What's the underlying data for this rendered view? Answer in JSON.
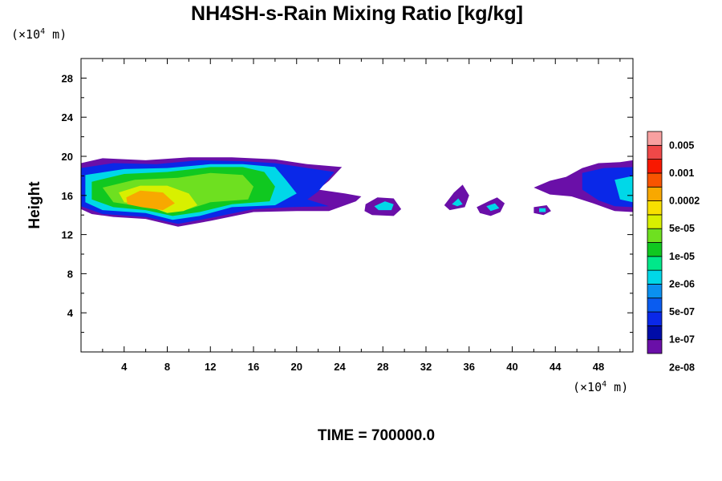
{
  "chart_data": {
    "type": "heatmap",
    "title": "NH4SH-s-Rain Mixing Ratio [kg/kg]",
    "ylabel": "Height",
    "x_unit": {
      "prefix": "(×10",
      "exp": "4",
      "suffix": " m)"
    },
    "y_unit": {
      "prefix": "(×10",
      "exp": "4",
      "suffix": " m)"
    },
    "xlim": [
      0,
      51.2
    ],
    "ylim": [
      0,
      30
    ],
    "x_ticks": [
      4,
      8,
      12,
      16,
      20,
      24,
      28,
      32,
      36,
      40,
      44,
      48
    ],
    "y_ticks": [
      4,
      8,
      12,
      16,
      20,
      24,
      28
    ],
    "footer": "TIME = 700000.0",
    "colorbar": {
      "labels": [
        "0.005",
        "0.001",
        "0.0002",
        "5e-05",
        "1e-05",
        "2e-06",
        "5e-07",
        "1e-07",
        "2e-08"
      ],
      "colors": [
        "#6a0fa8",
        "#000ca8",
        "#0a28e8",
        "#0a5cf0",
        "#0a90f0",
        "#00d8e8",
        "#00e88a",
        "#10c820",
        "#6ee020",
        "#d8f000",
        "#f8e000",
        "#f8a800",
        "#f85400",
        "#f81800",
        "#f04848",
        "#f8a0a0"
      ]
    },
    "regions": [
      {
        "name": "main-cloud",
        "level": 0,
        "pts": [
          [
            0,
            19.3
          ],
          [
            2,
            19.8
          ],
          [
            6,
            19.6
          ],
          [
            10,
            19.9
          ],
          [
            14,
            19.9
          ],
          [
            18,
            19.7
          ],
          [
            21,
            19.2
          ],
          [
            24.2,
            18.9
          ],
          [
            23,
            17.5
          ],
          [
            22,
            16.6
          ],
          [
            24.5,
            16.2
          ],
          [
            26,
            15.9
          ],
          [
            25.5,
            15.4
          ],
          [
            23,
            14.4
          ],
          [
            20,
            14.4
          ],
          [
            16,
            14.3
          ],
          [
            12,
            13.4
          ],
          [
            9,
            12.8
          ],
          [
            6,
            13.6
          ],
          [
            3,
            13.8
          ],
          [
            1,
            14.1
          ],
          [
            0,
            14.6
          ]
        ]
      },
      {
        "name": "main-cloud",
        "level": 2,
        "pts": [
          [
            0,
            18.8
          ],
          [
            3,
            19.3
          ],
          [
            7,
            19.2
          ],
          [
            11,
            19.6
          ],
          [
            15,
            19.5
          ],
          [
            18,
            19.3
          ],
          [
            21,
            18.8
          ],
          [
            23.5,
            18.4
          ],
          [
            22,
            16.4
          ],
          [
            21,
            15.6
          ],
          [
            23,
            14.9
          ],
          [
            19.5,
            14.8
          ],
          [
            16,
            14.6
          ],
          [
            12,
            13.7
          ],
          [
            9,
            13.1
          ],
          [
            6,
            13.8
          ],
          [
            2,
            14.1
          ],
          [
            0,
            14.9
          ]
        ]
      },
      {
        "name": "main-cloud",
        "level": 5,
        "pts": [
          [
            0.4,
            18.1
          ],
          [
            4,
            18.7
          ],
          [
            8,
            18.8
          ],
          [
            12,
            19.2
          ],
          [
            15,
            19.2
          ],
          [
            18,
            18.9
          ],
          [
            19,
            17.6
          ],
          [
            20,
            16.2
          ],
          [
            18,
            15.0
          ],
          [
            14,
            14.8
          ],
          [
            11,
            13.9
          ],
          [
            8.5,
            13.5
          ],
          [
            6,
            14.2
          ],
          [
            2,
            14.5
          ],
          [
            0.4,
            15.3
          ]
        ]
      },
      {
        "name": "main-cloud",
        "level": 7,
        "pts": [
          [
            1,
            17.4
          ],
          [
            4,
            18.2
          ],
          [
            8,
            18.4
          ],
          [
            12,
            18.9
          ],
          [
            15,
            18.9
          ],
          [
            17,
            18.4
          ],
          [
            18,
            16.9
          ],
          [
            17.5,
            15.4
          ],
          [
            14,
            15.1
          ],
          [
            11,
            14.3
          ],
          [
            8.5,
            13.9
          ],
          [
            6,
            14.5
          ],
          [
            3,
            14.8
          ],
          [
            1,
            15.6
          ]
        ]
      },
      {
        "name": "main-cloud",
        "level": 8,
        "pts": [
          [
            2,
            16.8
          ],
          [
            5,
            17.6
          ],
          [
            9,
            17.8
          ],
          [
            12,
            18.3
          ],
          [
            15,
            18.1
          ],
          [
            16,
            16.9
          ],
          [
            15.5,
            15.6
          ],
          [
            12,
            15.3
          ],
          [
            10,
            14.6
          ],
          [
            8.5,
            14.3
          ],
          [
            6,
            14.8
          ],
          [
            3,
            15.3
          ]
        ]
      },
      {
        "name": "main-cloud",
        "level": 9,
        "pts": [
          [
            3.5,
            16.3
          ],
          [
            5.5,
            17.0
          ],
          [
            8,
            17.0
          ],
          [
            10,
            16.2
          ],
          [
            10.8,
            15.0
          ],
          [
            9.5,
            14.4
          ],
          [
            8,
            14.2
          ],
          [
            6,
            15.0
          ],
          [
            4,
            15.3
          ]
        ]
      },
      {
        "name": "main-cloud",
        "level": 11,
        "pts": [
          [
            4.2,
            15.8
          ],
          [
            5.5,
            16.5
          ],
          [
            7.6,
            16.3
          ],
          [
            8.7,
            15.2
          ],
          [
            7.6,
            14.5
          ],
          [
            5.6,
            14.8
          ],
          [
            4.3,
            15.1
          ]
        ]
      },
      {
        "name": "right-cloud",
        "level": 0,
        "pts": [
          [
            42,
            16.8
          ],
          [
            43.5,
            17.5
          ],
          [
            45,
            17.9
          ],
          [
            46.5,
            18.8
          ],
          [
            48,
            19.3
          ],
          [
            50,
            19.4
          ],
          [
            51.2,
            19.6
          ],
          [
            51.2,
            14.3
          ],
          [
            49.5,
            14.4
          ],
          [
            47.5,
            15.2
          ],
          [
            45.5,
            15.9
          ],
          [
            43.5,
            16.1
          ]
        ]
      },
      {
        "name": "right-cloud",
        "level": 2,
        "pts": [
          [
            46.5,
            18.3
          ],
          [
            48.5,
            18.8
          ],
          [
            51.2,
            18.9
          ],
          [
            51.2,
            14.8
          ],
          [
            49.5,
            14.9
          ],
          [
            48,
            15.5
          ],
          [
            46.5,
            16.6
          ]
        ]
      },
      {
        "name": "right-cloud",
        "level": 5,
        "pts": [
          [
            49.5,
            17.6
          ],
          [
            51.2,
            18.0
          ],
          [
            51.2,
            15.3
          ],
          [
            50,
            15.6
          ]
        ]
      },
      {
        "name": "cell-a",
        "level": 0,
        "pts": [
          [
            26.4,
            15.1
          ],
          [
            27.5,
            15.8
          ],
          [
            29,
            15.7
          ],
          [
            29.7,
            14.6
          ],
          [
            29,
            13.9
          ],
          [
            27,
            14.0
          ],
          [
            26.3,
            14.4
          ]
        ]
      },
      {
        "name": "cell-a",
        "level": 5,
        "pts": [
          [
            27.2,
            14.9
          ],
          [
            28.2,
            15.4
          ],
          [
            29,
            15.1
          ],
          [
            28.8,
            14.5
          ],
          [
            27.6,
            14.5
          ]
        ]
      },
      {
        "name": "cell-b",
        "level": 0,
        "pts": [
          [
            33.7,
            15.0
          ],
          [
            34.6,
            16.3
          ],
          [
            35.4,
            17.1
          ],
          [
            36.0,
            16.0
          ],
          [
            35.6,
            14.8
          ],
          [
            34.2,
            14.5
          ]
        ]
      },
      {
        "name": "cell-b",
        "level": 5,
        "pts": [
          [
            34.4,
            15.1
          ],
          [
            35.0,
            15.7
          ],
          [
            35.4,
            15.1
          ],
          [
            34.9,
            14.9
          ]
        ]
      },
      {
        "name": "cell-c",
        "level": 0,
        "pts": [
          [
            36.7,
            14.8
          ],
          [
            37.8,
            15.4
          ],
          [
            38.6,
            15.8
          ],
          [
            39.3,
            15.2
          ],
          [
            38.9,
            14.3
          ],
          [
            38.0,
            13.9
          ],
          [
            37.0,
            14.2
          ]
        ]
      },
      {
        "name": "cell-c",
        "level": 5,
        "pts": [
          [
            37.6,
            14.9
          ],
          [
            38.4,
            15.2
          ],
          [
            38.8,
            14.7
          ],
          [
            38.0,
            14.4
          ]
        ]
      },
      {
        "name": "cell-d",
        "level": 0,
        "pts": [
          [
            42.0,
            14.8
          ],
          [
            43.2,
            15.0
          ],
          [
            43.6,
            14.4
          ],
          [
            42.9,
            14.0
          ],
          [
            42.0,
            14.2
          ]
        ]
      },
      {
        "name": "cell-d",
        "level": 5,
        "pts": [
          [
            42.5,
            14.7
          ],
          [
            43.1,
            14.7
          ],
          [
            43.1,
            14.3
          ],
          [
            42.5,
            14.3
          ]
        ]
      }
    ]
  }
}
